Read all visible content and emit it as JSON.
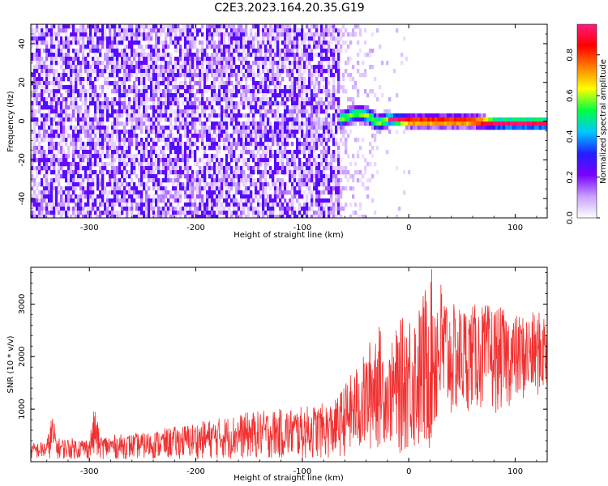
{
  "figure": {
    "title": "C2E3.2023.164.20.35.G19"
  },
  "chart_data": [
    {
      "type": "heatmap",
      "title": "C2E3.2023.164.20.35.G19",
      "xlabel": "Height of straight line (km)",
      "ylabel": "Frequency (Hz)",
      "xlim": [
        -355,
        130
      ],
      "ylim": [
        -50,
        50
      ],
      "x_ticks": [
        "-300",
        "-200",
        "-100",
        "0",
        "100"
      ],
      "y_ticks": [
        "40",
        "20",
        "0",
        "-20",
        "-40"
      ],
      "grid": false,
      "colorbar": {
        "label": "Normalized spectral amplitude",
        "range": [
          0,
          0.95
        ],
        "ticks": [
          "0.0",
          "0.2",
          "0.4",
          "0.6",
          "0.8"
        ],
        "colormap": [
          "#ffffff",
          "#c8a0ff",
          "#7a00ff",
          "#2020ff",
          "#00c8ff",
          "#00ff40",
          "#ffff00",
          "#ff8000",
          "#ff0000",
          "#ff1a80"
        ]
      },
      "description_series": [
        {
          "region": "noise",
          "x_range": [
            -355,
            -65
          ],
          "frequency_range": [
            -50,
            50
          ],
          "amplitude": 0.15
        },
        {
          "region": "transition",
          "x_range": [
            -65,
            -15
          ],
          "frequency_range": [
            -50,
            50
          ],
          "amplitude": 0.08
        },
        {
          "region": "signal",
          "x_range": [
            -65,
            130
          ],
          "frequency_center_points": [
            [
              -65,
              2
            ],
            [
              -50,
              5
            ],
            [
              -40,
              4
            ],
            [
              -30,
              0
            ],
            [
              -20,
              2
            ],
            [
              0,
              1
            ],
            [
              20,
              1
            ],
            [
              40,
              1
            ],
            [
              60,
              1
            ],
            [
              80,
              0
            ],
            [
              100,
              0
            ],
            [
              130,
              0
            ]
          ],
          "peak_amplitude": 0.9
        }
      ]
    },
    {
      "type": "line",
      "xlabel": "Height of straight line (km)",
      "ylabel": "SNR (10 * v/v)",
      "xlim": [
        -355,
        130
      ],
      "ylim": [
        0,
        3700
      ],
      "x_ticks": [
        "-300",
        "-200",
        "-100",
        "0",
        "100"
      ],
      "y_ticks": [
        "1000",
        "2000",
        "3000"
      ],
      "grid": false,
      "series_color": "#f03030",
      "envelope": {
        "x": [
          -355,
          -340,
          -335,
          -330,
          -300,
          -295,
          -290,
          -250,
          -200,
          -150,
          -100,
          -70,
          -60,
          -40,
          -30,
          -20,
          -10,
          0,
          10,
          20,
          30,
          40,
          60,
          80,
          100,
          120,
          130
        ],
        "upper": [
          350,
          400,
          950,
          450,
          450,
          1100,
          500,
          550,
          750,
          950,
          1050,
          1150,
          1500,
          2100,
          2800,
          2000,
          2650,
          2900,
          3000,
          3700,
          3500,
          3000,
          3000,
          3000,
          2800,
          2850,
          2900
        ],
        "lower": [
          50,
          50,
          50,
          50,
          50,
          50,
          50,
          50,
          50,
          50,
          50,
          50,
          100,
          150,
          200,
          400,
          100,
          200,
          100,
          150,
          700,
          800,
          1000,
          900,
          1100,
          1200,
          1300
        ]
      }
    }
  ]
}
